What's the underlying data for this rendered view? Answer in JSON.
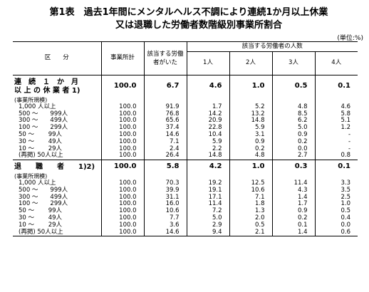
{
  "title_line1": "第1表　過去1年間にメンタルヘルス不調により連続1か月以上休業",
  "title_line2": "又は退職した労働者数階級別事業所割合",
  "unit": "(単位:%)",
  "header": {
    "category": "区　　分",
    "total": "事業所計",
    "has_workers": "該当する労働者がいた",
    "group": "該当する労働者の人数",
    "cols": [
      "1人",
      "2人",
      "3人",
      "4人"
    ]
  },
  "sections": [
    {
      "title_line1": "連　続　１　か　月",
      "title_line2": "以 上 の 休 業 者 1)",
      "values": [
        "100.0",
        "6.7",
        "4.6",
        "1.0",
        "0.5",
        "0.1"
      ],
      "subhead": "(事業所規模)",
      "rows": [
        {
          "label": "1,000 人以上",
          "values": [
            "100.0",
            "91.9",
            "1.7",
            "5.2",
            "4.8",
            "4.6"
          ]
        },
        {
          "label": "500 ～　　999人",
          "values": [
            "100.0",
            "76.8",
            "14.2",
            "13.2",
            "8.5",
            "5.8"
          ]
        },
        {
          "label": "300 ～　　499人",
          "values": [
            "100.0",
            "65.6",
            "20.9",
            "14.8",
            "6.2",
            "5.1"
          ]
        },
        {
          "label": "100 ～　　299人",
          "values": [
            "100.0",
            "37.4",
            "22.8",
            "5.9",
            "5.0",
            "1.2"
          ]
        },
        {
          "label": "50 ～　　 99人",
          "values": [
            "100.0",
            "14.6",
            "10.4",
            "3.1",
            "0.9",
            "-"
          ]
        },
        {
          "label": "30 ～　　 49人",
          "values": [
            "100.0",
            "7.1",
            "5.9",
            "0.9",
            "0.2",
            "-"
          ]
        },
        {
          "label": "10 ～　　 29人",
          "values": [
            "100.0",
            "2.4",
            "2.2",
            "0.2",
            "0.0",
            "-"
          ]
        },
        {
          "label": "(再掲) 50人以上",
          "values": [
            "100.0",
            "26.4",
            "14.8",
            "4.8",
            "2.7",
            "0.8"
          ]
        }
      ]
    },
    {
      "title_line1": "退　　職　　者　　1)2)",
      "title_line2": "",
      "values": [
        "100.0",
        "5.8",
        "4.2",
        "1.0",
        "0.3",
        "0.1"
      ],
      "subhead": "(事業所規模)",
      "rows": [
        {
          "label": "1,000 人以上",
          "values": [
            "100.0",
            "70.3",
            "19.2",
            "12.5",
            "11.4",
            "3.3"
          ]
        },
        {
          "label": "500 ～　　999人",
          "values": [
            "100.0",
            "39.9",
            "19.1",
            "10.6",
            "4.3",
            "3.5"
          ]
        },
        {
          "label": "300 ～　　499人",
          "values": [
            "100.0",
            "31.1",
            "17.1",
            "7.1",
            "1.4",
            "2.5"
          ]
        },
        {
          "label": "100 ～　　299人",
          "values": [
            "100.0",
            "16.0",
            "11.4",
            "1.8",
            "1.7",
            "1.0"
          ]
        },
        {
          "label": "50 ～　　 99人",
          "values": [
            "100.0",
            "10.6",
            "7.2",
            "1.3",
            "0.9",
            "0.5"
          ]
        },
        {
          "label": "30 ～　　 49人",
          "values": [
            "100.0",
            "7.7",
            "5.0",
            "2.0",
            "0.2",
            "0.4"
          ]
        },
        {
          "label": "10 ～　　 29人",
          "values": [
            "100.0",
            "3.6",
            "2.9",
            "0.5",
            "0.1",
            "0.0"
          ]
        },
        {
          "label": "(再掲) 50人以上",
          "values": [
            "100.0",
            "14.6",
            "9.4",
            "2.1",
            "1.4",
            "0.6"
          ]
        }
      ]
    }
  ]
}
